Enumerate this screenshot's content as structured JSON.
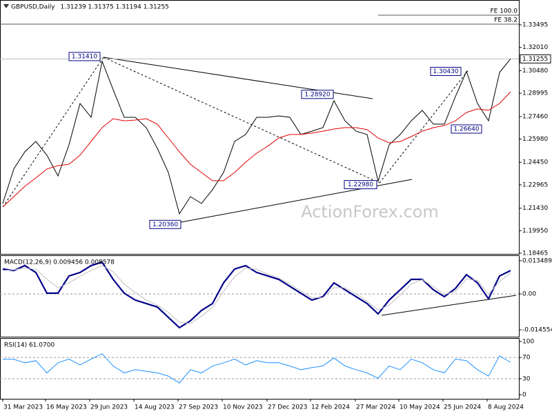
{
  "chart_data": [
    {
      "type": "line",
      "title": "GBPUSD,Daily",
      "ohlc": "1.31239 1.31375 1.31194 1.31255",
      "xlim": [
        -0.25,
        46.75
      ],
      "ylim": [
        1.1842,
        1.3513
      ],
      "yticks": [
        1.33495,
        {
          "value": 1.3201,
          "label": "1.32010"
        },
        {
          "value": 1.3048,
          "label": "1.30480"
        },
        1.28995,
        {
          "value": 1.2746,
          "label": "1.27460"
        },
        {
          "value": 1.2598,
          "label": "1.25980"
        },
        {
          "value": 1.2445,
          "label": "1.24450"
        },
        1.22965,
        {
          "value": 1.2143,
          "label": "1.21430"
        },
        {
          "value": 1.1995,
          "label": "1.19950"
        },
        1.18465
      ],
      "series": [
        {
          "color": "#000000",
          "values": [
            1.2174,
            1.2401,
            1.2514,
            1.2582,
            1.2492,
            1.2355,
            1.256,
            1.2832,
            1.2741,
            1.311,
            1.2923,
            1.2741,
            1.2741,
            1.2673,
            1.2537,
            1.2378,
            1.2106,
            1.2219,
            1.2174,
            1.2265,
            1.2378,
            1.2582,
            1.2628,
            1.2741,
            1.2741,
            1.275,
            1.2741,
            1.2628,
            1.265,
            1.2673,
            1.285,
            1.2718,
            1.265,
            1.2628,
            1.232,
            1.256,
            1.2628,
            1.2718,
            1.2787,
            1.2696,
            1.2696,
            1.2877,
            1.3043,
            1.2832,
            1.2718,
            1.3036,
            1.3126
          ]
        },
        {
          "color": "#e00000",
          "values": [
            1.2151,
            1.2219,
            1.2287,
            1.2342,
            1.2401,
            1.2423,
            1.2432,
            1.2492,
            1.2582,
            1.2673,
            1.2732,
            1.2718,
            1.2723,
            1.2732,
            1.2696,
            1.2605,
            1.2514,
            1.2432,
            1.2378,
            1.2324,
            1.2324,
            1.2378,
            1.2446,
            1.2505,
            1.2551,
            1.2605,
            1.2628,
            1.2628,
            1.2637,
            1.265,
            1.2664,
            1.2673,
            1.2673,
            1.266,
            1.2605,
            1.2573,
            1.2582,
            1.2614,
            1.265,
            1.2673,
            1.2687,
            1.2718,
            1.2773,
            1.2796,
            1.2787,
            1.2832,
            1.2909
          ]
        }
      ],
      "last_price": {
        "value": 1.31255,
        "label": "1.31255"
      },
      "fe_levels": [
        {
          "value": 1.3413,
          "label": "FE 100.0"
        },
        {
          "value": 1.3354,
          "label": "FE 38.2"
        }
      ],
      "annotations": [
        {
          "value": 1.3141,
          "label": "1.31410"
        },
        {
          "value": 1.2892,
          "label": "1.28920"
        },
        {
          "value": 1.3043,
          "label": "1.30430"
        },
        {
          "value": 1.2664,
          "label": "1.26640"
        },
        {
          "value": 1.2298,
          "label": "1.22980"
        },
        {
          "value": 1.2036,
          "label": "1.20360"
        }
      ],
      "watermark": "ActionForex.com"
    },
    {
      "type": "line",
      "title": "MACD(12,26,9) 0.009456 0.008578",
      "xlim": [
        -0.25,
        46.75
      ],
      "ylim": [
        -0.01736,
        0.0154
      ],
      "yticks": [
        0.013489,
        {
          "value": 0,
          "label": "0.00"
        },
        -0.014554
      ],
      "level_lines": [
        0
      ],
      "series": [
        {
          "color": "#00008b",
          "values": [
            0.0101,
            0.0095,
            0.0115,
            0.0087,
            0.0003,
            0.0003,
            0.0073,
            0.0087,
            0.0115,
            0.0129,
            0.0059,
            0.0003,
            -0.0025,
            -0.0039,
            -0.0053,
            -0.0095,
            -0.0137,
            -0.0109,
            -0.0067,
            -0.0039,
            0.0045,
            0.0101,
            0.0115,
            0.0087,
            0.0073,
            0.0059,
            0.0031,
            0.0003,
            -0.0025,
            -0.0011,
            0.0045,
            0.0017,
            -0.0011,
            -0.0039,
            -0.0081,
            -0.0025,
            0.0017,
            0.0059,
            0.0059,
            0.0017,
            -0.0011,
            0.0022,
            0.0078,
            0.0045,
            -0.002,
            0.0073,
            0.0095
          ]
        },
        {
          "color": "#c0c0c0",
          "values": [
            0.0095,
            0.0098,
            0.0105,
            0.01,
            0.006,
            0.0025,
            0.0045,
            0.0072,
            0.0095,
            0.0115,
            0.009,
            0.004,
            0.0005,
            -0.0025,
            -0.0045,
            -0.0075,
            -0.0115,
            -0.012,
            -0.009,
            -0.0055,
            0.001,
            0.007,
            0.0105,
            0.01,
            0.008,
            0.0065,
            0.004,
            0.0012,
            -0.0015,
            -0.0015,
            0.0025,
            0.0025,
            0,
            -0.003,
            -0.0065,
            -0.0045,
            -0.0005,
            0.004,
            0.0058,
            0.003,
            -0.0002,
            0.001,
            0.006,
            0.0055,
            0,
            0.005,
            0.0086
          ]
        }
      ]
    },
    {
      "type": "line",
      "title": "RSI(14) 61.0700",
      "xlim": [
        -0.25,
        46.75
      ],
      "ylim": [
        -7.7,
        105.1
      ],
      "yticks": [
        100,
        70,
        30,
        0
      ],
      "level_lines": [
        30,
        70
      ],
      "series": [
        {
          "color": "#1e90ff",
          "values": [
            66.7,
            66.7,
            60,
            64,
            41,
            60,
            67,
            56,
            67,
            77,
            54,
            41,
            47,
            44,
            41,
            35,
            22,
            47,
            41,
            54,
            60,
            67,
            56,
            64,
            60,
            60,
            54,
            47,
            51,
            54,
            69,
            54,
            47,
            41,
            31,
            54,
            47,
            67,
            60,
            47,
            41,
            67,
            64,
            47,
            35,
            73,
            61.07
          ]
        }
      ],
      "xticks": [
        {
          "value": 0,
          "label": "31 Mar 2023"
        },
        {
          "value": 3.875,
          "label": "16 May 2023"
        },
        {
          "value": 7.875,
          "label": "29 Jun 2023"
        },
        {
          "value": 11.875,
          "label": "14 Aug 2023"
        },
        {
          "value": 15.875,
          "label": "27 Sep 2023"
        },
        {
          "value": 19.875,
          "label": "10 Nov 2023"
        },
        {
          "value": 23.9375,
          "label": "27 Dec 2023"
        },
        {
          "value": 27.875,
          "label": "12 Feb 2024"
        },
        {
          "value": 31.9375,
          "label": "27 Mar 2024"
        },
        {
          "value": 35.875,
          "label": "10 May 2024"
        },
        {
          "value": 39.875,
          "label": "25 Jun 2024"
        },
        {
          "value": 43.875,
          "label": "8 Aug 2024"
        }
      ]
    }
  ]
}
